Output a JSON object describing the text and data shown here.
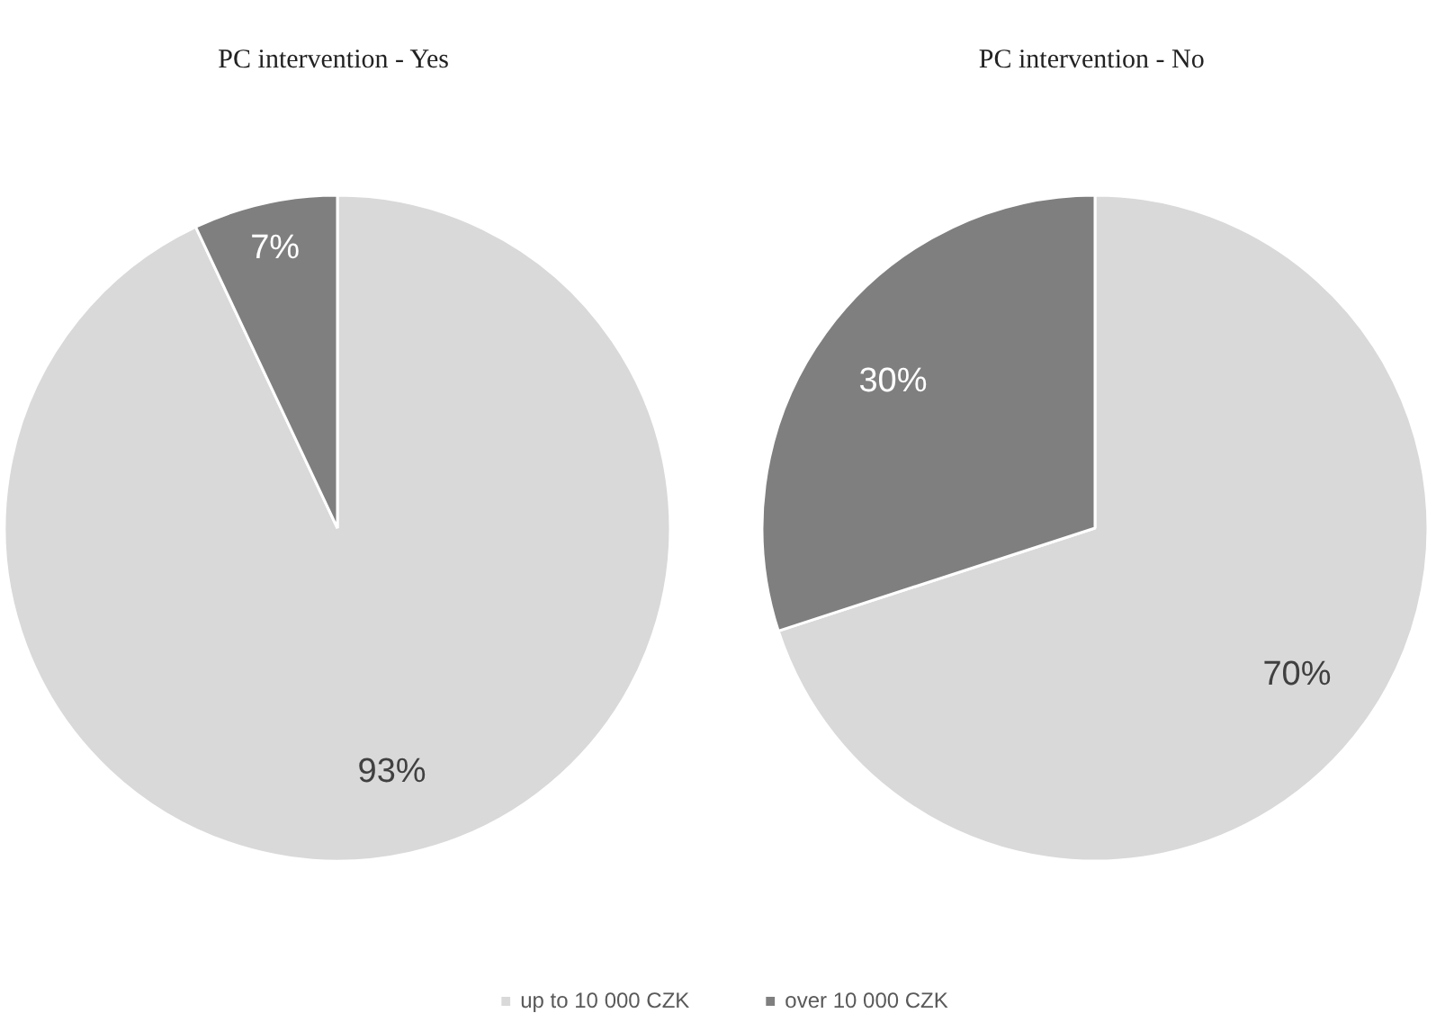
{
  "chart_data": [
    {
      "type": "pie",
      "title": "PC intervention  - Yes",
      "categories": [
        "up to 10 000 CZK",
        "over 10 000 CZK"
      ],
      "values": [
        93,
        7
      ],
      "colors": [
        "#d9d9d9",
        "#7f7f7f"
      ],
      "value_labels": [
        "93%",
        "7%"
      ],
      "legend": "bottom"
    },
    {
      "type": "pie",
      "title": "PC intervention  - No",
      "values": [
        70,
        30
      ],
      "colors": [
        "#d9d9d9",
        "#7f7f7f"
      ],
      "value_labels": [
        "70%",
        "30%"
      ]
    }
  ]
}
